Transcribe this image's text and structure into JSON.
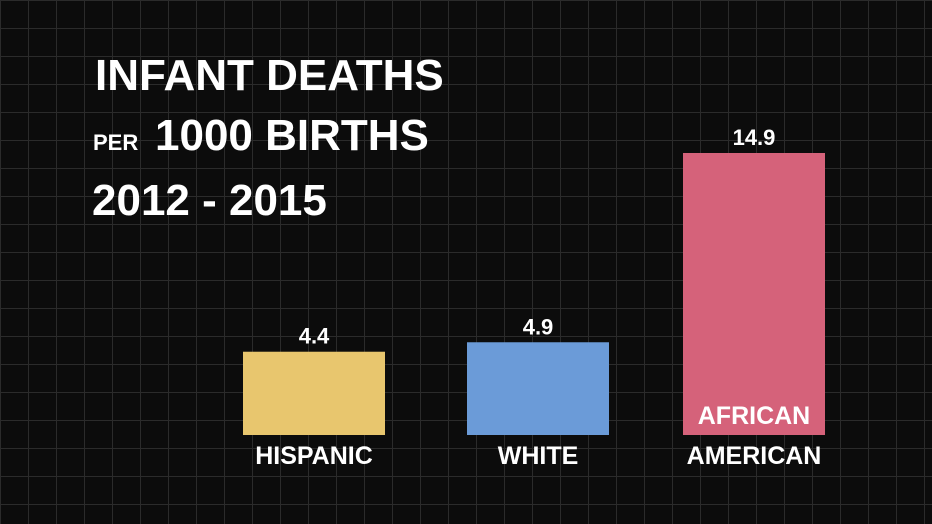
{
  "chart_data": {
    "type": "bar",
    "title": "INFANT DEATHS",
    "unit_prefix": "PER",
    "unit": "1000 BIRTHS",
    "period": "2012 - 2015",
    "categories": [
      "HISPANIC",
      "WHITE",
      "AFRICAN AMERICAN"
    ],
    "values": [
      4.4,
      4.9,
      14.9
    ],
    "colors": [
      "#e8c66e",
      "#6b9bd8",
      "#d5627a"
    ]
  }
}
